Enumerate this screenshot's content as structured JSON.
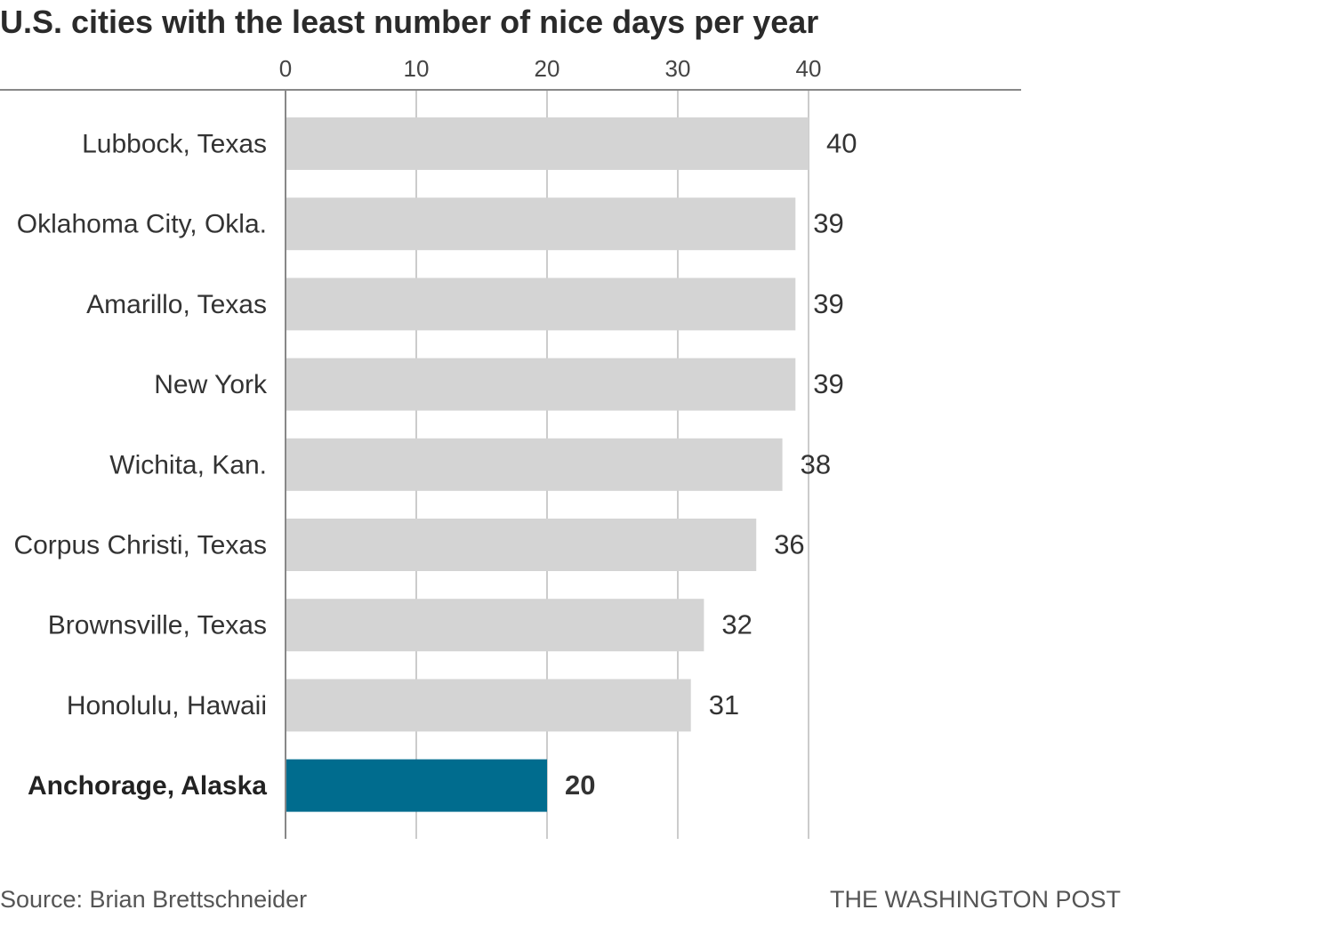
{
  "chart_data": {
    "type": "bar",
    "orientation": "horizontal",
    "title": "U.S. cities with the least number of nice days per year",
    "categories": [
      "Lubbock, Texas",
      "Oklahoma City, Okla.",
      "Amarillo, Texas",
      "New York",
      "Wichita, Kan.",
      "Corpus Christi, Texas",
      "Brownsville, Texas",
      "Honolulu, Hawaii",
      "Anchorage, Alaska"
    ],
    "values": [
      40,
      39,
      39,
      39,
      38,
      36,
      32,
      31,
      20
    ],
    "highlighted": "Anchorage, Alaska",
    "xticks": [
      "0",
      "10",
      "20",
      "30",
      "40"
    ],
    "xlim": [
      0,
      40
    ],
    "grid": true,
    "legend": "none",
    "colors": {
      "bar": "#d4d4d4",
      "highlight": "#006c8e",
      "grid": "#cccccc",
      "axis": "#888888"
    }
  },
  "footer": {
    "source": "Source: Brian Brettschneider",
    "credit": "THE WASHINGTON POST"
  }
}
